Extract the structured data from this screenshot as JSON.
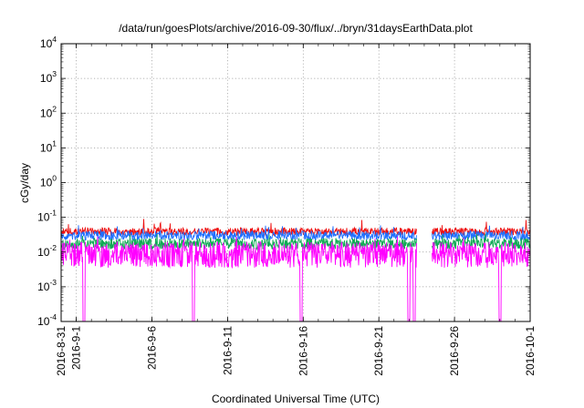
{
  "chart_data": {
    "type": "line",
    "title": "/data/run/goesPlots/archive/2016-09-30/flux/../bryn/31daysEarthData.plot",
    "xlabel": "Coordinated Universal Time (UTC)",
    "ylabel": "cGy/day",
    "yscale": "log",
    "ylim": [
      0.0001,
      10000
    ],
    "xlim": [
      "2016-08-31",
      "2016-10-01"
    ],
    "grid": true,
    "y_ticks": [
      {
        "base": "10",
        "exp": "-4",
        "value": 0.0001
      },
      {
        "base": "10",
        "exp": "-3",
        "value": 0.001
      },
      {
        "base": "10",
        "exp": "-2",
        "value": 0.01
      },
      {
        "base": "10",
        "exp": "-1",
        "value": 0.1
      },
      {
        "base": "10",
        "exp": "0",
        "value": 1
      },
      {
        "base": "10",
        "exp": "1",
        "value": 10
      },
      {
        "base": "10",
        "exp": "2",
        "value": 100
      },
      {
        "base": "10",
        "exp": "3",
        "value": 1000
      },
      {
        "base": "10",
        "exp": "4",
        "value": 10000
      }
    ],
    "x_ticks": [
      {
        "label": "2016-8-31",
        "value": "2016-08-31"
      },
      {
        "label": "2016-9-1",
        "value": "2016-09-01"
      },
      {
        "label": "2016-9-6",
        "value": "2016-09-06"
      },
      {
        "label": "2016-9-11",
        "value": "2016-09-11"
      },
      {
        "label": "2016-9-16",
        "value": "2016-09-16"
      },
      {
        "label": "2016-9-21",
        "value": "2016-09-21"
      },
      {
        "label": "2016-9-26",
        "value": "2016-09-26"
      },
      {
        "label": "2016-10-1",
        "value": "2016-10-01"
      }
    ],
    "data_gaps": [
      [
        "2016-09-23T12:00",
        "2016-09-24T12:00"
      ]
    ],
    "dropouts": [
      "2016-09-01T12:00",
      "2016-09-08T18:00",
      "2016-09-15T20:00",
      "2016-09-22T23:00",
      "2016-09-23T08:00",
      "2016-09-29T00:00"
    ],
    "series": [
      {
        "color": "#ee1111",
        "typical_low": 0.03,
        "typical_high": 0.05,
        "spike_max": 0.09
      },
      {
        "color": "#1f6fff",
        "typical_low": 0.022,
        "typical_high": 0.04,
        "spike_max": 0.06
      },
      {
        "color": "#11aa55",
        "typical_low": 0.012,
        "typical_high": 0.025,
        "spike_max": 0.035
      },
      {
        "color": "#ff00ff",
        "typical_low": 0.0035,
        "typical_high": 0.02,
        "spike_max": 0.03
      }
    ]
  }
}
